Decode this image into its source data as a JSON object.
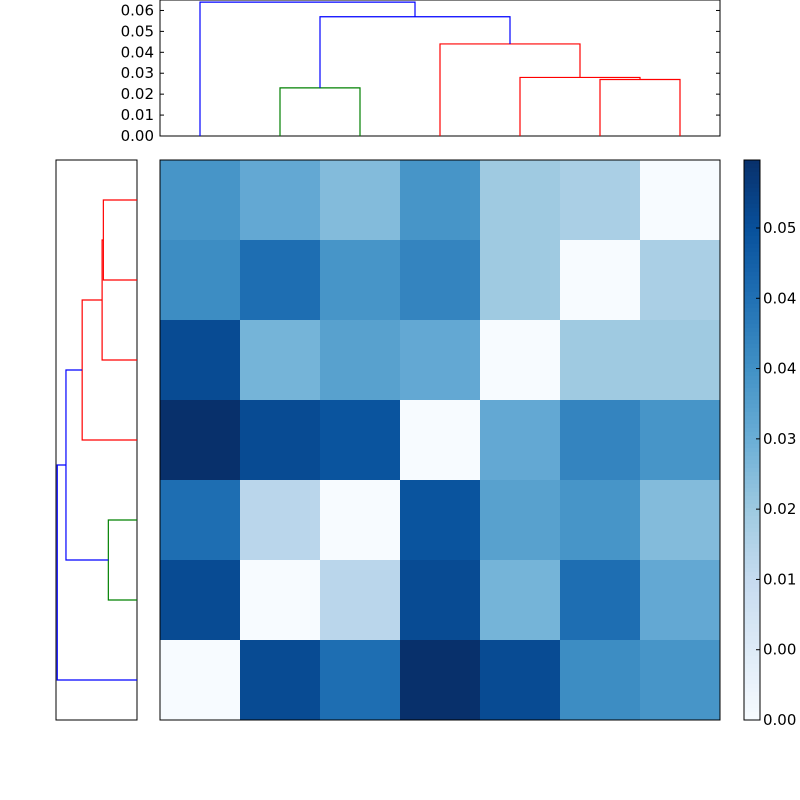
{
  "chart_data": [
    {
      "type": "dendrogram",
      "orientation": "top",
      "ylim": [
        0,
        0.065
      ],
      "yticks": [
        "0.00",
        "0.01",
        "0.02",
        "0.03",
        "0.04",
        "0.05",
        "0.06"
      ],
      "leaf_count": 7,
      "links": [
        {
          "left": 1.5,
          "right": 2.5,
          "height": 0.023,
          "color": "#008000"
        },
        {
          "left": 5.5,
          "right": 6.5,
          "height": 0.027,
          "color": "#ff0000"
        },
        {
          "left": 4.5,
          "right": 6.0,
          "height": 0.028,
          "color": "#ff0000"
        },
        {
          "left": 3.5,
          "right": 5.25,
          "height": 0.044,
          "color": "#ff0000"
        },
        {
          "left": 2.0,
          "right": 4.375,
          "height": 0.057,
          "color": "#0000ff"
        },
        {
          "left": 0.5,
          "right": 3.1875,
          "height": 0.064,
          "color": "#0000ff"
        }
      ]
    },
    {
      "type": "dendrogram",
      "orientation": "left",
      "leaf_count": 7,
      "links": [
        {
          "left": 1.5,
          "right": 2.5,
          "height": 0.023,
          "color": "#008000"
        },
        {
          "left": 5.5,
          "right": 6.5,
          "height": 0.027,
          "color": "#ff0000"
        },
        {
          "left": 4.5,
          "right": 6.0,
          "height": 0.028,
          "color": "#ff0000"
        },
        {
          "left": 3.5,
          "right": 5.25,
          "height": 0.044,
          "color": "#ff0000"
        },
        {
          "left": 2.0,
          "right": 4.375,
          "height": 0.057,
          "color": "#0000ff"
        },
        {
          "left": 0.5,
          "right": 3.1875,
          "height": 0.064,
          "color": "#0000ff"
        }
      ]
    },
    {
      "type": "heatmap",
      "colormap": "Blues",
      "vmin": 0.0,
      "vmax": 0.059,
      "rows_top_to_bottom": [
        [
          0.036,
          0.031,
          0.026,
          0.036,
          0.022,
          0.02,
          0.0
        ],
        [
          0.038,
          0.045,
          0.036,
          0.04,
          0.022,
          0.0,
          0.02
        ],
        [
          0.053,
          0.028,
          0.033,
          0.031,
          0.0,
          0.022,
          0.022
        ],
        [
          0.059,
          0.053,
          0.051,
          0.0,
          0.031,
          0.04,
          0.036
        ],
        [
          0.045,
          0.017,
          0.0,
          0.051,
          0.033,
          0.036,
          0.026
        ],
        [
          0.053,
          0.0,
          0.017,
          0.053,
          0.028,
          0.045,
          0.031
        ],
        [
          0.0,
          0.053,
          0.045,
          0.059,
          0.053,
          0.038,
          0.036
        ]
      ],
      "colorbar_ticks": [
        "0.00",
        "0.00",
        "0.01",
        "0.02",
        "0.03",
        "0.04",
        "0.04",
        "0.05"
      ]
    }
  ]
}
